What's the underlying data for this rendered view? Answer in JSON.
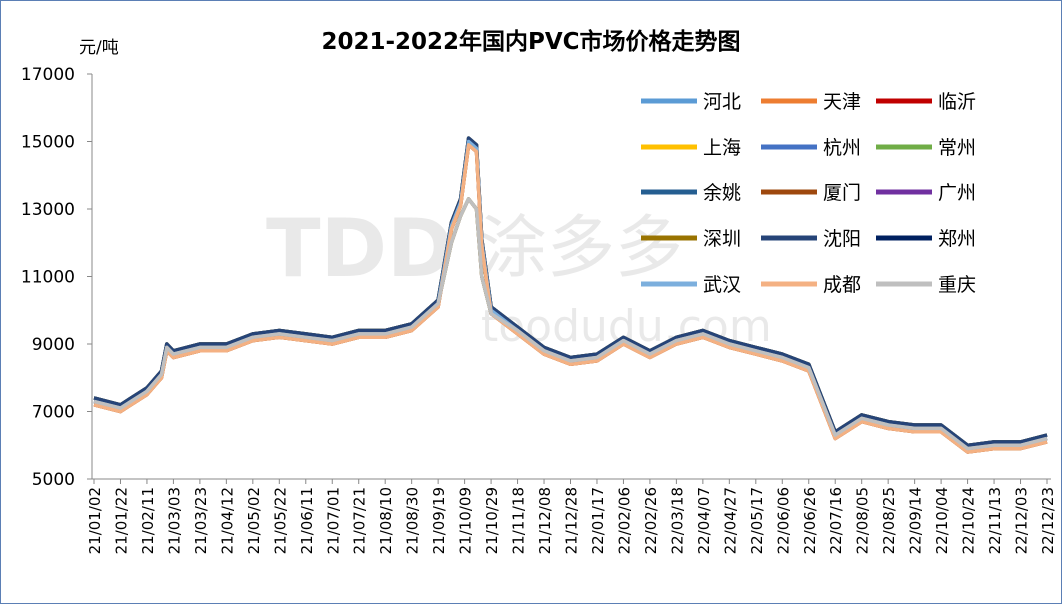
{
  "chart_data": {
    "type": "line",
    "title": "2021-2022年国内PVC市场价格走势图",
    "ylabel": "元/吨",
    "xlabel": "",
    "ylim": [
      5000,
      17000
    ],
    "yticks": [
      5000,
      7000,
      9000,
      11000,
      13000,
      15000,
      17000
    ],
    "xlim": [
      "2021-01-02",
      "2022-12-23"
    ],
    "xtick_labels": [
      "21/01/02",
      "21/01/22",
      "21/02/11",
      "21/03/03",
      "21/03/23",
      "21/04/12",
      "21/05/02",
      "21/05/22",
      "21/06/11",
      "21/07/01",
      "21/07/21",
      "21/08/10",
      "21/08/30",
      "21/09/19",
      "21/10/09",
      "21/10/29",
      "21/11/18",
      "21/12/08",
      "21/12/28",
      "22/01/17",
      "22/02/06",
      "22/02/26",
      "22/03/18",
      "22/04/07",
      "22/04/27",
      "22/05/17",
      "22/06/06",
      "22/06/26",
      "22/07/16",
      "22/08/05",
      "22/08/25",
      "22/09/14",
      "22/10/04",
      "22/10/24",
      "22/11/13",
      "22/12/03",
      "22/12/23"
    ],
    "grid": false,
    "legend": "top-right",
    "watermark": "TDD 涂多多 toodudu.com",
    "x": [
      "2021-01-02",
      "2021-01-22",
      "2021-02-11",
      "2021-02-22",
      "2021-02-26",
      "2021-03-03",
      "2021-03-23",
      "2021-04-12",
      "2021-05-02",
      "2021-05-22",
      "2021-06-11",
      "2021-07-01",
      "2021-07-21",
      "2021-08-10",
      "2021-08-30",
      "2021-09-19",
      "2021-09-29",
      "2021-10-06",
      "2021-10-12",
      "2021-10-18",
      "2021-10-22",
      "2021-10-29",
      "2021-11-18",
      "2021-12-08",
      "2021-12-28",
      "2022-01-17",
      "2022-02-06",
      "2022-02-26",
      "2022-03-18",
      "2022-04-07",
      "2022-04-27",
      "2022-05-17",
      "2022-06-06",
      "2022-06-26",
      "2022-07-06",
      "2022-07-16",
      "2022-08-05",
      "2022-08-25",
      "2022-09-14",
      "2022-10-04",
      "2022-10-24",
      "2022-11-13",
      "2022-12-03",
      "2022-12-23"
    ],
    "series": [
      {
        "name": "河北",
        "color": "#5B9BD5",
        "values": [
          7300,
          7100,
          7600,
          8100,
          8900,
          8700,
          8900,
          8900,
          9200,
          9300,
          9200,
          9100,
          9300,
          9300,
          9500,
          10200,
          12500,
          13200,
          15000,
          14800,
          12000,
          10000,
          9400,
          8800,
          8500,
          8600,
          9100,
          8700,
          9100,
          9300,
          9000,
          8800,
          8600,
          8300,
          7300,
          6300,
          6800,
          6600,
          6500,
          6500,
          5900,
          6000,
          6000,
          6200
        ]
      },
      {
        "name": "天津",
        "color": "#ED7D31",
        "values": [
          7200,
          7000,
          7500,
          8000,
          8800,
          8600,
          8800,
          8800,
          9100,
          9200,
          9100,
          9000,
          9200,
          9200,
          9400,
          10100,
          12400,
          13100,
          14900,
          14700,
          11900,
          9900,
          9300,
          8700,
          8400,
          8500,
          9000,
          8600,
          9000,
          9200,
          8900,
          8700,
          8500,
          8200,
          7200,
          6200,
          6700,
          6500,
          6400,
          6400,
          5800,
          5900,
          5900,
          6100
        ]
      },
      {
        "name": "临沂",
        "color": "#C00000",
        "values": [
          7300,
          7100,
          7600,
          8100,
          8900,
          8700,
          8900,
          8900,
          9200,
          9300,
          9200,
          9100,
          9300,
          9300,
          9500,
          10200,
          12000,
          12800,
          13300,
          13000,
          11000,
          9900,
          9400,
          8800,
          8500,
          8600,
          9100,
          8700,
          9100,
          9300,
          9000,
          8800,
          8600,
          8300,
          7300,
          6300,
          6800,
          6600,
          6500,
          6500,
          5900,
          6000,
          6000,
          6200
        ]
      },
      {
        "name": "上海",
        "color": "#FFC000",
        "values": [
          7300,
          7100,
          7600,
          8100,
          8900,
          8700,
          8900,
          8900,
          9200,
          9300,
          9200,
          9100,
          9300,
          9300,
          9500,
          10200,
          12500,
          13200,
          15000,
          14800,
          12000,
          10000,
          9400,
          8800,
          8500,
          8600,
          9100,
          8700,
          9100,
          9300,
          9000,
          8800,
          8600,
          8300,
          7300,
          6300,
          6800,
          6600,
          6500,
          6500,
          5900,
          6000,
          6000,
          6200
        ]
      },
      {
        "name": "杭州",
        "color": "#4472C4",
        "values": [
          7400,
          7200,
          7700,
          8200,
          9000,
          8800,
          9000,
          9000,
          9300,
          9400,
          9300,
          9200,
          9400,
          9400,
          9600,
          10300,
          12600,
          13300,
          15100,
          14900,
          12100,
          10100,
          9500,
          8900,
          8600,
          8700,
          9200,
          8800,
          9200,
          9400,
          9100,
          8900,
          8700,
          8400,
          7400,
          6400,
          6900,
          6700,
          6600,
          6600,
          6000,
          6100,
          6100,
          6300
        ]
      },
      {
        "name": "常州",
        "color": "#70AD47",
        "values": [
          7300,
          7100,
          7600,
          8100,
          8900,
          8700,
          8900,
          8900,
          9200,
          9300,
          9200,
          9100,
          9300,
          9300,
          9500,
          10200,
          12000,
          12800,
          13300,
          13000,
          11000,
          9900,
          9400,
          8800,
          8500,
          8600,
          9100,
          8700,
          9100,
          9300,
          9000,
          8800,
          8600,
          8300,
          7300,
          6300,
          6800,
          6600,
          6500,
          6500,
          5900,
          6000,
          6000,
          6200
        ]
      },
      {
        "name": "余姚",
        "color": "#255E91",
        "values": [
          7400,
          7200,
          7700,
          8200,
          9000,
          8800,
          9000,
          9000,
          9300,
          9400,
          9300,
          9200,
          9400,
          9400,
          9600,
          10300,
          12600,
          13300,
          15100,
          14900,
          12100,
          10100,
          9500,
          8900,
          8600,
          8700,
          9200,
          8800,
          9200,
          9400,
          9100,
          8900,
          8700,
          8400,
          7400,
          6400,
          6900,
          6700,
          6600,
          6600,
          6000,
          6100,
          6100,
          6300
        ]
      },
      {
        "name": "厦门",
        "color": "#9E480E",
        "values": [
          7200,
          7000,
          7500,
          8000,
          8800,
          8600,
          8800,
          8800,
          9100,
          9200,
          9100,
          9000,
          9200,
          9200,
          9400,
          10100,
          12400,
          13100,
          14900,
          14700,
          11900,
          9900,
          9300,
          8700,
          8400,
          8500,
          9000,
          8600,
          9000,
          9200,
          8900,
          8700,
          8500,
          8200,
          7200,
          6200,
          6700,
          6500,
          6400,
          6400,
          5800,
          5900,
          5900,
          6100
        ]
      },
      {
        "name": "广州",
        "color": "#7030A0",
        "values": [
          7300,
          7100,
          7600,
          8100,
          8900,
          8700,
          8900,
          8900,
          9200,
          9300,
          9200,
          9100,
          9300,
          9300,
          9500,
          10200,
          12500,
          13200,
          15000,
          14800,
          12000,
          10000,
          9400,
          8800,
          8500,
          8600,
          9100,
          8700,
          9100,
          9300,
          9000,
          8800,
          8600,
          8300,
          7300,
          6300,
          6800,
          6600,
          6500,
          6500,
          5900,
          6000,
          6000,
          6200
        ]
      },
      {
        "name": "深圳",
        "color": "#997300",
        "values": [
          7400,
          7200,
          7700,
          8200,
          9000,
          8800,
          9000,
          9000,
          9300,
          9400,
          9300,
          9200,
          9400,
          9400,
          9600,
          10300,
          12600,
          13300,
          15100,
          14900,
          12100,
          10100,
          9500,
          8900,
          8600,
          8700,
          9200,
          8800,
          9200,
          9400,
          9100,
          8900,
          8700,
          8400,
          7400,
          6400,
          6900,
          6700,
          6600,
          6600,
          6000,
          6100,
          6100,
          6300
        ]
      },
      {
        "name": "沈阳",
        "color": "#264478",
        "values": [
          7400,
          7200,
          7700,
          8200,
          9000,
          8800,
          9000,
          9000,
          9300,
          9400,
          9300,
          9200,
          9400,
          9400,
          9600,
          10300,
          12600,
          13300,
          15100,
          14900,
          12100,
          10100,
          9500,
          8900,
          8600,
          8700,
          9200,
          8800,
          9200,
          9400,
          9100,
          8900,
          8700,
          8400,
          7400,
          6400,
          6900,
          6700,
          6600,
          6600,
          6000,
          6100,
          6100,
          6300
        ]
      },
      {
        "name": "郑州",
        "color": "#002060",
        "values": [
          7300,
          7100,
          7600,
          8100,
          8900,
          8700,
          8900,
          8900,
          9200,
          9300,
          9200,
          9100,
          9300,
          9300,
          9500,
          10200,
          12500,
          13200,
          15000,
          14800,
          12000,
          10000,
          9400,
          8800,
          8500,
          8600,
          9100,
          8700,
          9100,
          9300,
          9000,
          8800,
          8600,
          8300,
          7300,
          6300,
          6800,
          6600,
          6500,
          6500,
          5900,
          6000,
          6000,
          6200
        ]
      },
      {
        "name": "武汉",
        "color": "#7CAFDD",
        "values": [
          7300,
          7100,
          7600,
          8100,
          8900,
          8700,
          8900,
          8900,
          9200,
          9300,
          9200,
          9100,
          9300,
          9300,
          9500,
          10200,
          12500,
          13200,
          15000,
          14800,
          12000,
          10000,
          9400,
          8800,
          8500,
          8600,
          9100,
          8700,
          9100,
          9300,
          9000,
          8800,
          8600,
          8300,
          7300,
          6300,
          6800,
          6600,
          6500,
          6500,
          5900,
          6000,
          6000,
          6200
        ]
      },
      {
        "name": "成都",
        "color": "#F4B183",
        "values": [
          7200,
          7000,
          7500,
          8000,
          8800,
          8600,
          8800,
          8800,
          9100,
          9200,
          9100,
          9000,
          9200,
          9200,
          9400,
          10100,
          12400,
          13100,
          14900,
          14700,
          11900,
          9900,
          9300,
          8700,
          8400,
          8500,
          9000,
          8600,
          9000,
          9200,
          8900,
          8700,
          8500,
          8200,
          7200,
          6200,
          6700,
          6500,
          6400,
          6400,
          5800,
          5900,
          5900,
          6100
        ]
      },
      {
        "name": "重庆",
        "color": "#BFBFBF",
        "values": [
          7300,
          7100,
          7600,
          8100,
          8900,
          8700,
          8900,
          8900,
          9200,
          9300,
          9200,
          9100,
          9300,
          9300,
          9500,
          10200,
          12000,
          12800,
          13300,
          13000,
          11000,
          9900,
          9400,
          8800,
          8500,
          8600,
          9100,
          8700,
          9100,
          9300,
          9000,
          8800,
          8600,
          8300,
          7300,
          6300,
          6800,
          6600,
          6500,
          6500,
          5900,
          6000,
          6000,
          6200
        ]
      }
    ]
  }
}
